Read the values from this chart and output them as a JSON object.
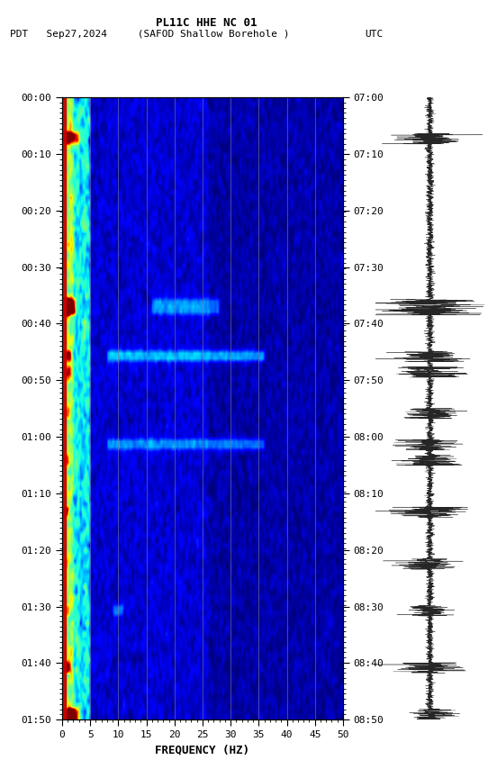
{
  "title_line1": "PL11C HHE NC 01",
  "title_line2_left": "PDT   Sep27,2024     (SAFOD Shallow Borehole )                UTC",
  "xlabel": "FREQUENCY (HZ)",
  "freq_min": 0,
  "freq_max": 50,
  "ytick_left": [
    "00:00",
    "00:10",
    "00:20",
    "00:30",
    "00:40",
    "00:50",
    "01:00",
    "01:10",
    "01:20",
    "01:30",
    "01:40",
    "01:50"
  ],
  "ytick_right": [
    "07:00",
    "07:10",
    "07:20",
    "07:30",
    "07:40",
    "07:50",
    "08:00",
    "08:10",
    "08:20",
    "08:30",
    "08:40",
    "08:50"
  ],
  "xticks": [
    0,
    5,
    10,
    15,
    20,
    25,
    30,
    35,
    40,
    45,
    50
  ],
  "grid_color": "#7070a0",
  "background_color": "#ffffff",
  "fig_width": 5.52,
  "fig_height": 8.64,
  "colormap": "jet",
  "vmin": -2.0,
  "vmax": 3.5,
  "red_bar_color": "#cc0000",
  "red_bar_width": 0.7
}
